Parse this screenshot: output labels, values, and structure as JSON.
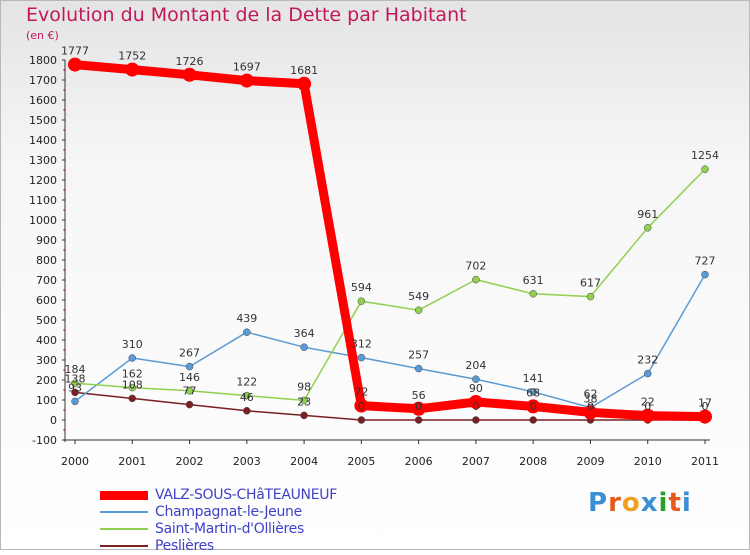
{
  "header": {
    "title": "Evolution du Montant de la Dette par Habitant",
    "unit": "(en €)"
  },
  "logo": {
    "text": "Proxiti",
    "colors": [
      "#3a8fd6",
      "#e85a1c",
      "#f0a020",
      "#3a8fd6",
      "#2ca02c",
      "#e85a1c",
      "#3a8fd6"
    ]
  },
  "chart_data": {
    "type": "line",
    "title": "Evolution du Montant de la Dette par Habitant",
    "ylabel": "(en €)",
    "xlabel": "",
    "x": [
      "2000",
      "2001",
      "2002",
      "2003",
      "2004",
      "2005",
      "2006",
      "2007",
      "2008",
      "2009",
      "2010",
      "2011"
    ],
    "ylim": [
      -100,
      1800
    ],
    "yticks": [
      -100,
      0,
      100,
      200,
      300,
      400,
      500,
      600,
      700,
      800,
      900,
      1000,
      1100,
      1200,
      1300,
      1400,
      1500,
      1600,
      1700,
      1800
    ],
    "grid": false,
    "legend": "bottom-left",
    "series": [
      {
        "name": "VALZ-SOUS-CHâTEAUNEUF",
        "color": "#ff0000",
        "width": 9,
        "values": [
          1777,
          1752,
          1726,
          1697,
          1681,
          72,
          56,
          90,
          68,
          38,
          22,
          17
        ],
        "labels": [
          "1777",
          "1752",
          "1726",
          "1697",
          "1681",
          "72",
          "56",
          "90",
          "68",
          "38",
          "22",
          "17"
        ]
      },
      {
        "name": "Champagnat-le-Jeune",
        "color": "#5b9bd5",
        "width": 1.5,
        "values": [
          93,
          310,
          267,
          439,
          364,
          312,
          257,
          204,
          141,
          62,
          232,
          727
        ],
        "labels": [
          "93",
          "310",
          "267",
          "439",
          "364",
          "312",
          "257",
          "204",
          "141",
          "62",
          "232",
          "727"
        ]
      },
      {
        "name": "Saint-Martin-d'Ollières",
        "color": "#92d050",
        "width": 1.5,
        "values": [
          184,
          162,
          146,
          122,
          98,
          594,
          549,
          702,
          631,
          617,
          961,
          1254
        ],
        "labels": [
          "184",
          "162",
          "146",
          "122",
          "98",
          "594",
          "549",
          "702",
          "631",
          "617",
          "961",
          "1254"
        ]
      },
      {
        "name": "Peslières",
        "color": "#7b2020",
        "width": 1.5,
        "values": [
          138,
          108,
          77,
          46,
          23,
          0,
          0,
          0,
          0,
          0,
          0,
          0
        ],
        "labels": [
          "138",
          "108",
          "77",
          "46",
          "23",
          "0",
          "0",
          "0",
          "0",
          "0",
          "0",
          "0"
        ]
      }
    ]
  }
}
